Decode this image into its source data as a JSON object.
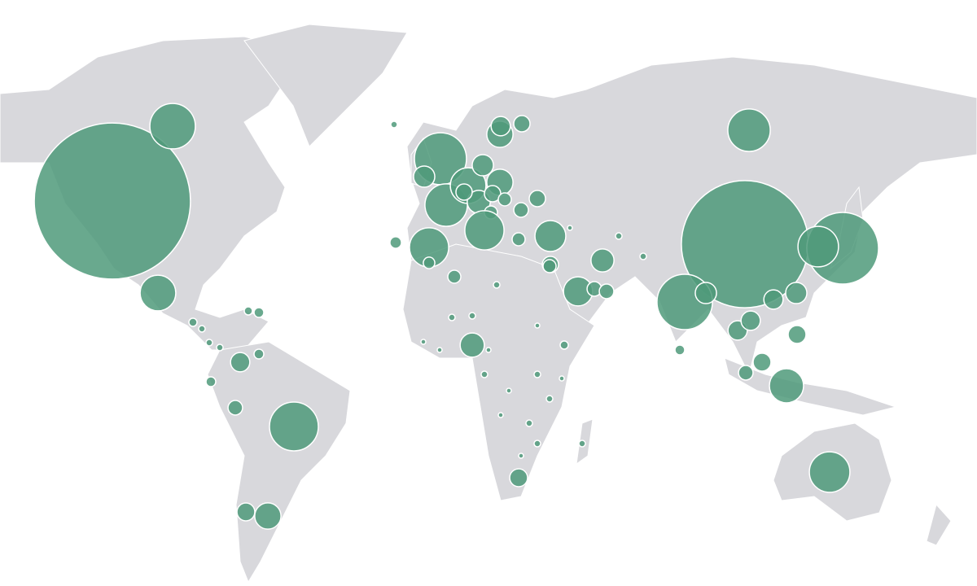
{
  "chart_data": {
    "type": "bubble-map",
    "color": "#4f9a7a",
    "values": [
      92,
      7.8,
      4.8,
      9,
      2.6,
      1.2,
      1.4,
      0.8,
      0.36,
      0.36,
      0.25,
      0.36,
      0.25,
      0.16,
      0.16,
      0.16,
      10.2,
      1.7,
      6.8,
      4.8,
      1.7,
      2.6,
      2,
      1,
      1,
      0.64,
      0.64,
      5.8,
      5.8,
      0.5,
      3.6,
      2.6,
      1.4,
      1,
      1,
      0.64,
      0.8,
      0.5,
      0.64,
      0.16,
      6.8,
      61,
      19.4,
      6.2,
      11.6,
      2,
      3.2,
      1,
      0.8,
      0.8,
      1.7,
      1.4,
      0.36,
      0.64,
      1.4,
      0.8,
      1.2,
      4.4,
      1.2,
      1.4,
      1.7,
      2.2,
      1.2,
      6.2,
      0.25,
      0.16,
      0.16,
      0.16,
      0.09,
      0.09,
      0.16,
      0.09,
      0.16,
      0.09,
      0.16,
      0.09,
      0.16,
      0.09,
      0.16,
      0.16,
      0.09,
      0.09,
      0.16,
      0.16,
      0.09
    ]
  }
}
